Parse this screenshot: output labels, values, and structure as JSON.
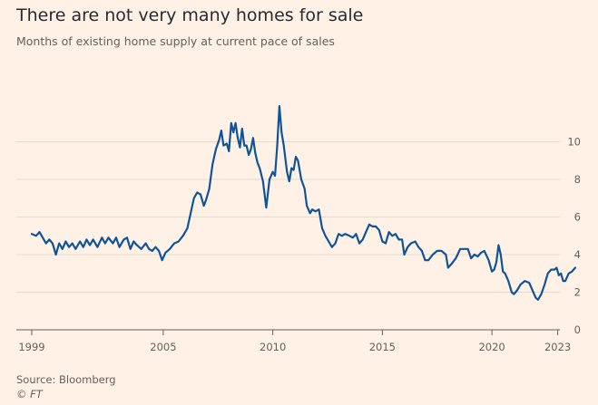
{
  "chart_data": {
    "type": "line",
    "title": "There are not very many homes for sale",
    "subtitle": "Months of existing home supply at current pace of sales",
    "xlabel": "",
    "ylabel": "",
    "x_ticks": [
      "1999",
      "2005",
      "2010",
      "2015",
      "2020",
      "2023"
    ],
    "y_ticks": [
      "0",
      "2",
      "4",
      "6",
      "8",
      "10"
    ],
    "xlim": [
      1999,
      2023.1
    ],
    "ylim": [
      0,
      12
    ],
    "grid": true,
    "series": [
      {
        "color": "#0F5499",
        "points": [
          [
            1999.0,
            5.1
          ],
          [
            1999.2,
            5.0
          ],
          [
            1999.35,
            5.2
          ],
          [
            1999.5,
            4.9
          ],
          [
            1999.65,
            4.6
          ],
          [
            1999.8,
            4.8
          ],
          [
            1999.95,
            4.6
          ],
          [
            2000.1,
            4.0
          ],
          [
            2000.25,
            4.6
          ],
          [
            2000.4,
            4.3
          ],
          [
            2000.55,
            4.7
          ],
          [
            2000.7,
            4.4
          ],
          [
            2000.85,
            4.6
          ],
          [
            2001.0,
            4.3
          ],
          [
            2001.2,
            4.7
          ],
          [
            2001.35,
            4.4
          ],
          [
            2001.5,
            4.8
          ],
          [
            2001.65,
            4.5
          ],
          [
            2001.8,
            4.8
          ],
          [
            2002.0,
            4.4
          ],
          [
            2002.2,
            4.9
          ],
          [
            2002.35,
            4.6
          ],
          [
            2002.5,
            4.9
          ],
          [
            2002.7,
            4.6
          ],
          [
            2002.85,
            4.9
          ],
          [
            2003.0,
            4.4
          ],
          [
            2003.2,
            4.8
          ],
          [
            2003.35,
            4.9
          ],
          [
            2003.5,
            4.3
          ],
          [
            2003.65,
            4.7
          ],
          [
            2003.8,
            4.5
          ],
          [
            2004.0,
            4.3
          ],
          [
            2004.2,
            4.6
          ],
          [
            2004.35,
            4.3
          ],
          [
            2004.5,
            4.2
          ],
          [
            2004.65,
            4.4
          ],
          [
            2004.8,
            4.2
          ],
          [
            2004.95,
            3.7
          ],
          [
            2005.1,
            4.1
          ],
          [
            2005.3,
            4.3
          ],
          [
            2005.5,
            4.6
          ],
          [
            2005.7,
            4.7
          ],
          [
            2005.9,
            5.0
          ],
          [
            2006.1,
            5.4
          ],
          [
            2006.25,
            6.2
          ],
          [
            2006.4,
            7.0
          ],
          [
            2006.55,
            7.3
          ],
          [
            2006.7,
            7.2
          ],
          [
            2006.85,
            6.6
          ],
          [
            2006.95,
            6.9
          ],
          [
            2007.1,
            7.5
          ],
          [
            2007.25,
            8.8
          ],
          [
            2007.4,
            9.6
          ],
          [
            2007.55,
            10.1
          ],
          [
            2007.65,
            10.6
          ],
          [
            2007.75,
            9.8
          ],
          [
            2007.9,
            9.9
          ],
          [
            2008.0,
            9.5
          ],
          [
            2008.1,
            11.0
          ],
          [
            2008.2,
            10.5
          ],
          [
            2008.3,
            11.0
          ],
          [
            2008.4,
            10.2
          ],
          [
            2008.5,
            9.7
          ],
          [
            2008.6,
            10.7
          ],
          [
            2008.7,
            9.8
          ],
          [
            2008.8,
            9.8
          ],
          [
            2008.9,
            9.3
          ],
          [
            2009.0,
            9.6
          ],
          [
            2009.1,
            10.2
          ],
          [
            2009.2,
            9.4
          ],
          [
            2009.3,
            8.9
          ],
          [
            2009.4,
            8.6
          ],
          [
            2009.55,
            7.9
          ],
          [
            2009.7,
            6.5
          ],
          [
            2009.85,
            8.0
          ],
          [
            2010.0,
            8.4
          ],
          [
            2010.1,
            8.2
          ],
          [
            2010.2,
            9.8
          ],
          [
            2010.3,
            11.9
          ],
          [
            2010.4,
            10.5
          ],
          [
            2010.5,
            9.8
          ],
          [
            2010.65,
            8.4
          ],
          [
            2010.75,
            7.9
          ],
          [
            2010.85,
            8.6
          ],
          [
            2010.95,
            8.5
          ],
          [
            2011.05,
            9.2
          ],
          [
            2011.15,
            9.0
          ],
          [
            2011.3,
            8.0
          ],
          [
            2011.45,
            7.5
          ],
          [
            2011.55,
            6.6
          ],
          [
            2011.7,
            6.2
          ],
          [
            2011.8,
            6.4
          ],
          [
            2011.95,
            6.3
          ],
          [
            2012.1,
            6.4
          ],
          [
            2012.25,
            5.4
          ],
          [
            2012.4,
            5.0
          ],
          [
            2012.55,
            4.7
          ],
          [
            2012.7,
            4.4
          ],
          [
            2012.85,
            4.6
          ],
          [
            2013.0,
            5.1
          ],
          [
            2013.15,
            5.0
          ],
          [
            2013.3,
            5.1
          ],
          [
            2013.5,
            5.0
          ],
          [
            2013.65,
            4.9
          ],
          [
            2013.8,
            5.1
          ],
          [
            2013.95,
            4.6
          ],
          [
            2014.1,
            4.8
          ],
          [
            2014.25,
            5.2
          ],
          [
            2014.4,
            5.6
          ],
          [
            2014.55,
            5.5
          ],
          [
            2014.7,
            5.5
          ],
          [
            2014.85,
            5.3
          ],
          [
            2015.0,
            4.7
          ],
          [
            2015.15,
            4.6
          ],
          [
            2015.3,
            5.2
          ],
          [
            2015.45,
            5.0
          ],
          [
            2015.6,
            5.1
          ],
          [
            2015.75,
            4.8
          ],
          [
            2015.9,
            4.8
          ],
          [
            2016.0,
            4.0
          ],
          [
            2016.15,
            4.4
          ],
          [
            2016.3,
            4.6
          ],
          [
            2016.5,
            4.7
          ],
          [
            2016.65,
            4.4
          ],
          [
            2016.8,
            4.2
          ],
          [
            2016.95,
            3.7
          ],
          [
            2017.1,
            3.7
          ],
          [
            2017.3,
            4.0
          ],
          [
            2017.5,
            4.2
          ],
          [
            2017.7,
            4.2
          ],
          [
            2017.9,
            4.0
          ],
          [
            2018.0,
            3.3
          ],
          [
            2018.15,
            3.5
          ],
          [
            2018.35,
            3.8
          ],
          [
            2018.55,
            4.3
          ],
          [
            2018.75,
            4.3
          ],
          [
            2018.9,
            4.3
          ],
          [
            2019.05,
            3.8
          ],
          [
            2019.2,
            4.0
          ],
          [
            2019.35,
            3.9
          ],
          [
            2019.5,
            4.1
          ],
          [
            2019.65,
            4.2
          ],
          [
            2019.85,
            3.7
          ],
          [
            2020.0,
            3.1
          ],
          [
            2020.1,
            3.2
          ],
          [
            2020.2,
            3.6
          ],
          [
            2020.3,
            4.5
          ],
          [
            2020.4,
            4.0
          ],
          [
            2020.5,
            3.1
          ],
          [
            2020.6,
            3.0
          ],
          [
            2020.75,
            2.6
          ],
          [
            2020.9,
            2.0
          ],
          [
            2021.0,
            1.9
          ],
          [
            2021.15,
            2.1
          ],
          [
            2021.3,
            2.4
          ],
          [
            2021.5,
            2.6
          ],
          [
            2021.7,
            2.5
          ],
          [
            2021.85,
            2.1
          ],
          [
            2022.0,
            1.7
          ],
          [
            2022.1,
            1.6
          ],
          [
            2022.25,
            1.9
          ],
          [
            2022.4,
            2.4
          ],
          [
            2022.55,
            3.0
          ],
          [
            2022.7,
            3.2
          ],
          [
            2022.85,
            3.2
          ],
          [
            2022.95,
            3.3
          ],
          [
            2023.05,
            2.9
          ],
          [
            2023.15,
            3.0
          ],
          [
            2023.25,
            2.6
          ],
          [
            2023.35,
            2.6
          ],
          [
            2023.5,
            3.0
          ],
          [
            2023.65,
            3.1
          ],
          [
            2023.8,
            3.3
          ]
        ]
      }
    ]
  },
  "footer": {
    "source": "Source: Bloomberg",
    "credit": "© FT"
  }
}
